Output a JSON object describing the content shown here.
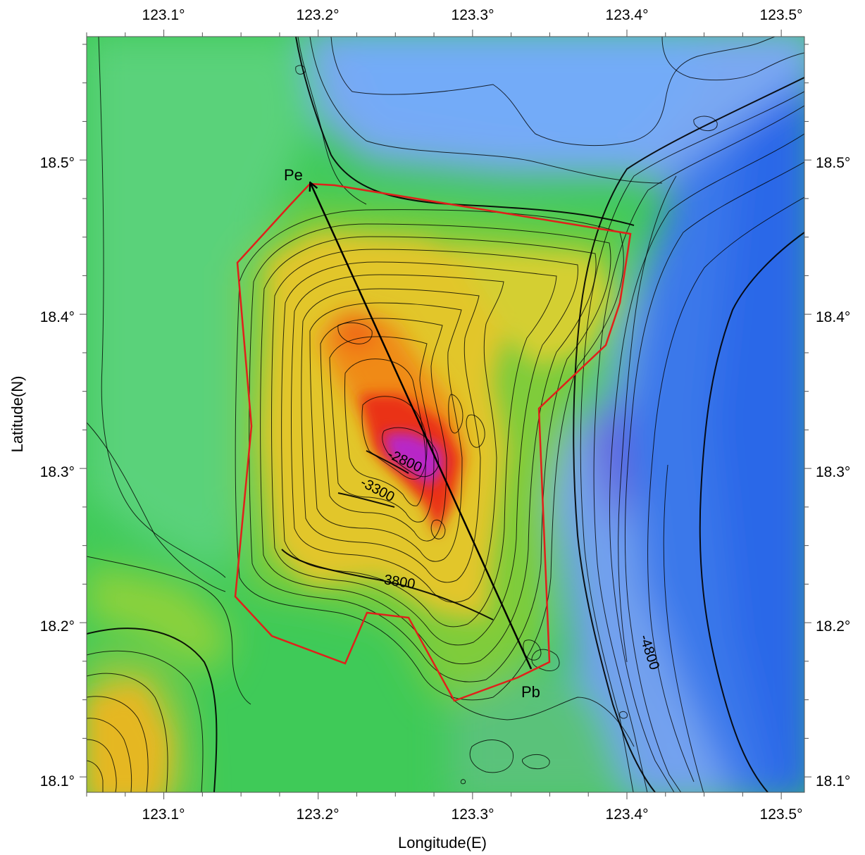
{
  "map": {
    "x_axis_title": "Longitude(E)",
    "y_axis_title": "Latitude(N)",
    "lon_ticks": [
      "123.1°",
      "123.2°",
      "123.3°",
      "123.4°",
      "123.5°"
    ],
    "lat_ticks": [
      "18.5°",
      "18.4°",
      "18.3°",
      "18.2°",
      "18.1°"
    ],
    "lon_range": [
      123.05,
      123.515
    ],
    "lat_range": [
      18.09,
      18.58
    ],
    "contour_labels": [
      "-2800",
      "-3300",
      "-3800",
      "-4800"
    ],
    "profile": {
      "start_label": "Pb",
      "end_label": "Pe",
      "start": {
        "lon": 123.338,
        "lat": 18.17
      },
      "end": {
        "lon": 123.195,
        "lat": 18.485
      }
    },
    "colors": {
      "boundary": "#e0201a",
      "profile_line": "#000000",
      "shallow": "#b400c8",
      "mid": "#e8c820",
      "plain": "#3ec95a",
      "deep": "#1e5ae6"
    }
  }
}
